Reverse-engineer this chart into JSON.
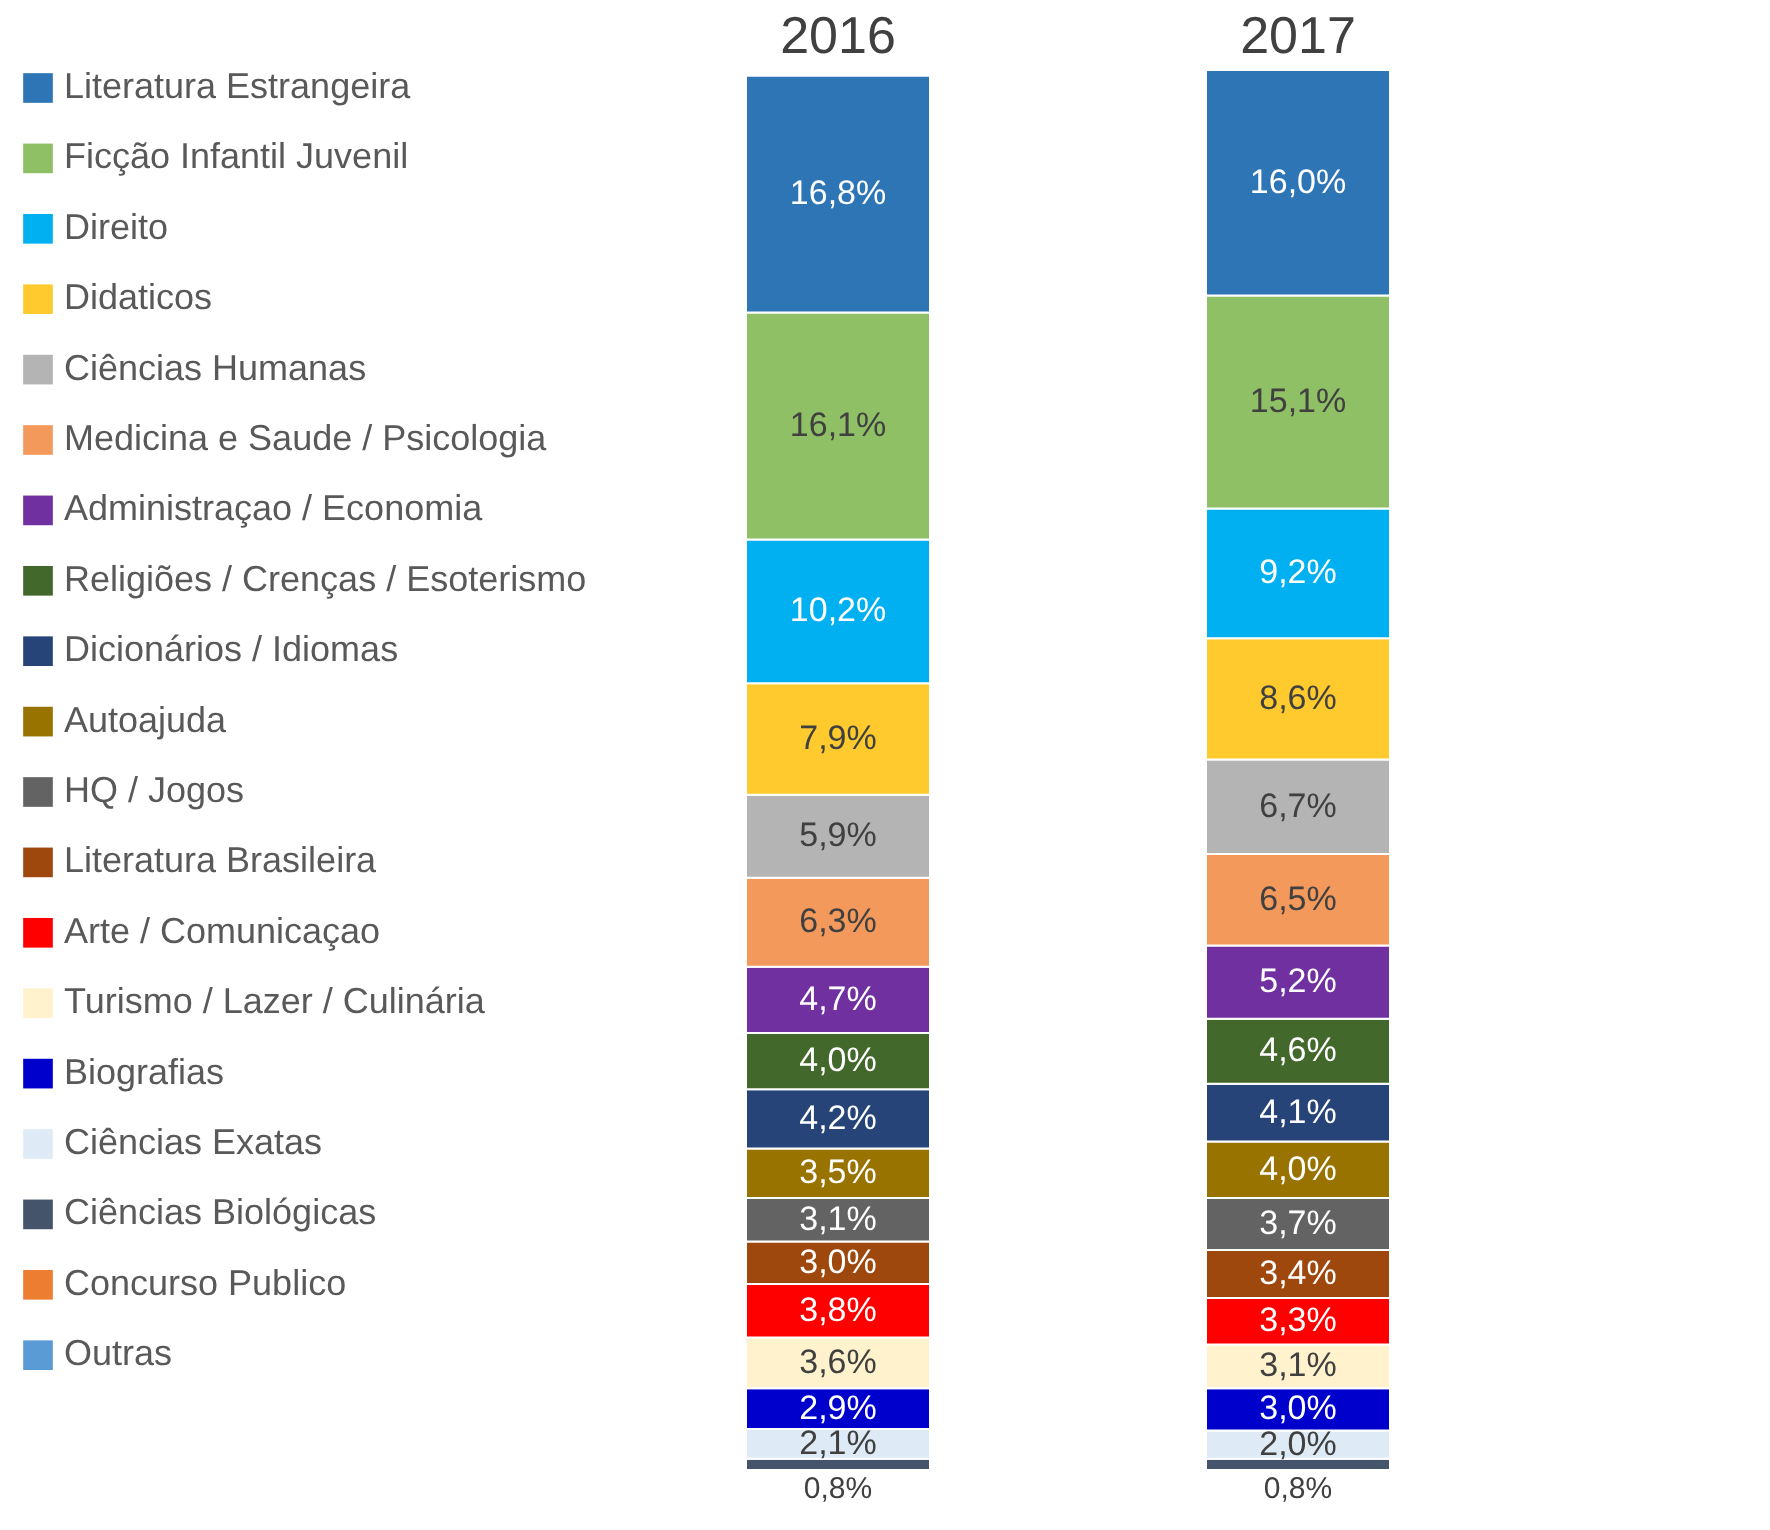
{
  "chart_data": {
    "type": "bar",
    "stacked": true,
    "categories": [
      "2016",
      "2017"
    ],
    "legend": "left",
    "series": [
      {
        "name": "Outras",
        "color": "#5b9bd5",
        "values": [
          null,
          null
        ]
      },
      {
        "name": "Concurso Publico",
        "color": "#ed7d31",
        "values": [
          null,
          null
        ]
      },
      {
        "name": "Ciências Biológicas",
        "color": "#44546a",
        "values": [
          0.8,
          0.8
        ],
        "value_labels": [
          "0,8%",
          "0,8%"
        ]
      },
      {
        "name": "Ciências Exatas",
        "color": "#deebf7",
        "values": [
          2.1,
          2.0
        ],
        "value_labels": [
          "2,1%",
          "2,0%"
        ]
      },
      {
        "name": "Biografias",
        "color": "#0000cc",
        "values": [
          2.9,
          3.0
        ],
        "value_labels": [
          "2,9%",
          "3,0%"
        ]
      },
      {
        "name": "Turismo / Lazer / Culinária",
        "color": "#fff2cc",
        "values": [
          3.6,
          3.1
        ],
        "value_labels": [
          "3,6%",
          "3,1%"
        ]
      },
      {
        "name": "Arte / Comunicaçao",
        "color": "#ff0000",
        "values": [
          3.8,
          3.3
        ],
        "value_labels": [
          "3,8%",
          "3,3%"
        ]
      },
      {
        "name": "Literatura Brasileira",
        "color": "#9e480e",
        "values": [
          3.0,
          3.4
        ],
        "value_labels": [
          "3,0%",
          "3,4%"
        ]
      },
      {
        "name": "HQ / Jogos",
        "color": "#636363",
        "values": [
          3.1,
          3.7
        ],
        "value_labels": [
          "3,1%",
          "3,7%"
        ]
      },
      {
        "name": "Autoajuda",
        "color": "#997300",
        "values": [
          3.5,
          4.0
        ],
        "value_labels": [
          "3,5%",
          "4,0%"
        ]
      },
      {
        "name": "Dicionários / Idiomas",
        "color": "#264478",
        "values": [
          4.2,
          4.1
        ],
        "value_labels": [
          "4,2%",
          "4,1%"
        ]
      },
      {
        "name": "Religiões / Crenças / Esoterismo",
        "color": "#43682b",
        "values": [
          4.0,
          4.6
        ],
        "value_labels": [
          "4,0%",
          "4,6%"
        ]
      },
      {
        "name": "Administraçao / Economia",
        "color": "#7030a0",
        "values": [
          4.7,
          5.2
        ],
        "value_labels": [
          "4,7%",
          "5,2%"
        ]
      },
      {
        "name": "Medicina e Saude / Psicologia",
        "color": "#f4995c",
        "values": [
          6.3,
          6.5
        ],
        "value_labels": [
          "6,3%",
          "6,5%"
        ]
      },
      {
        "name": "Ciências Humanas",
        "color": "#b4b4b4",
        "values": [
          5.9,
          6.7
        ],
        "value_labels": [
          "5,9%",
          "6,7%"
        ]
      },
      {
        "name": "Didaticos",
        "color": "#ffca2e",
        "values": [
          7.9,
          8.6
        ],
        "value_labels": [
          "7,9%",
          "8,6%"
        ]
      },
      {
        "name": "Direito",
        "color": "#00b0f0",
        "values": [
          10.2,
          9.2
        ],
        "value_labels": [
          "10,2%",
          "9,2%"
        ]
      },
      {
        "name": "Ficção Infantil Juvenil",
        "color": "#8fc066",
        "values": [
          16.1,
          15.1
        ],
        "value_labels": [
          "16,1%",
          "15,1%"
        ]
      },
      {
        "name": "Literatura Estrangeira",
        "color": "#2e75b6",
        "values": [
          16.8,
          16.0
        ],
        "value_labels": [
          "16,8%",
          "16,0%"
        ]
      }
    ]
  }
}
